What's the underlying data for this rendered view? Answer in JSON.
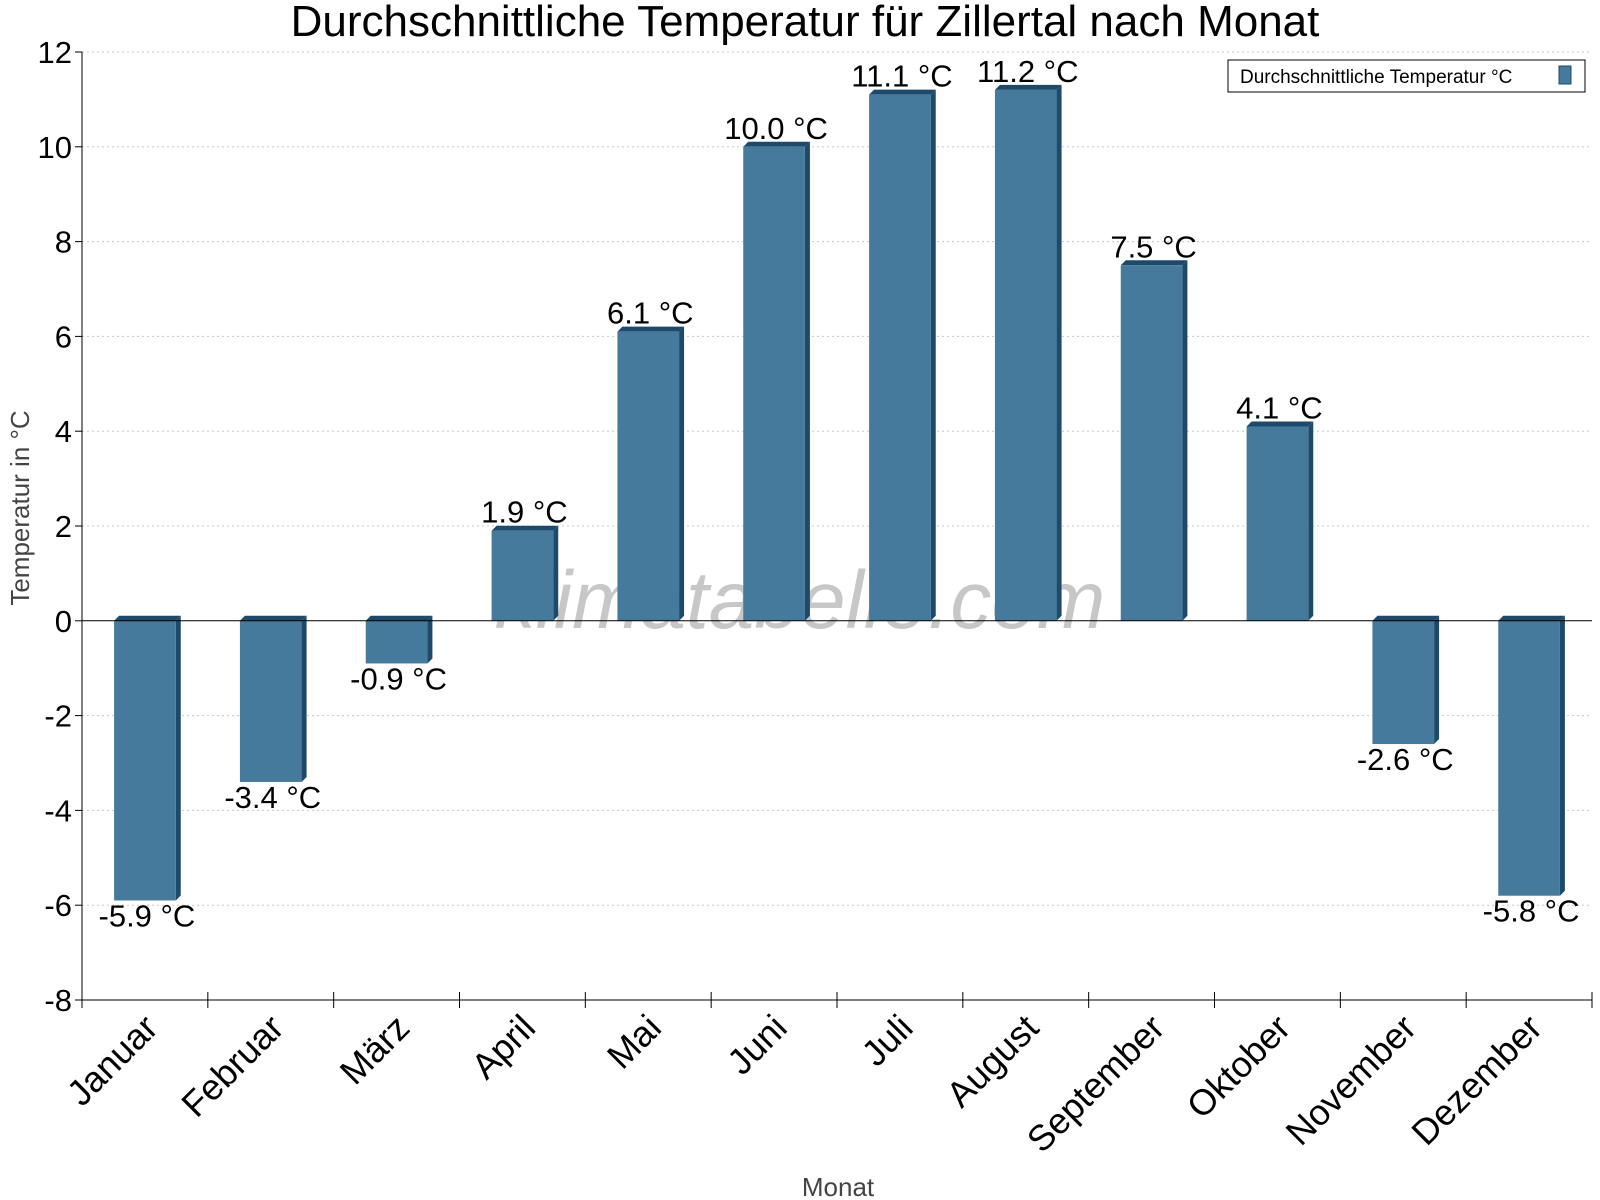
{
  "chart_data": {
    "type": "bar",
    "title": "Durchschnittliche Temperatur für Zillertal nach Monat",
    "xlabel": "Monat",
    "ylabel": "Temperatur in °C",
    "ylim": [
      -8,
      12
    ],
    "yticks": [
      12,
      10,
      8,
      6,
      4,
      2,
      0,
      -2,
      -4,
      -6,
      -8
    ],
    "grid": true,
    "legend_position": "top-right",
    "categories": [
      "Januar",
      "Februar",
      "März",
      "April",
      "Mai",
      "Juni",
      "Juli",
      "August",
      "September",
      "Oktober",
      "November",
      "Dezember"
    ],
    "series": [
      {
        "name": "Durchschnittliche Temperatur °C",
        "values": [
          -5.9,
          -3.4,
          -0.9,
          1.9,
          6.1,
          10.0,
          11.1,
          11.2,
          7.5,
          4.1,
          -2.6,
          -5.8
        ],
        "labels": [
          "-5.9 °C",
          "-3.4 °C",
          "-0.9 °C",
          "1.9 °C",
          "6.1 °C",
          "10.0 °C",
          "11.1 °C",
          "11.2 °C",
          "7.5 °C",
          "4.1 °C",
          "-2.6 °C",
          "-5.8 °C"
        ]
      }
    ],
    "colors": {
      "bar": "#457a9d",
      "bar_side": "#1d4a6b",
      "grid": "#c8c8c8",
      "axis": "#000000"
    }
  },
  "watermark": "klimatabelle.com"
}
